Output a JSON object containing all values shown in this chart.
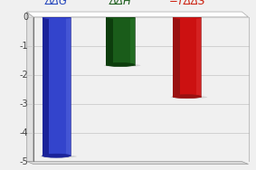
{
  "values": [
    -4.8,
    -1.65,
    -2.75
  ],
  "bar_colors_main": [
    "#3344cc",
    "#1a5c1a",
    "#cc1111"
  ],
  "bar_colors_dark": [
    "#1a2299",
    "#0d3d0d",
    "#991111"
  ],
  "bar_colors_light": [
    "#5566dd",
    "#2a7c2a",
    "#dd3333"
  ],
  "bar_colors_top": [
    "#4455ee",
    "#226622",
    "#ee2222"
  ],
  "ylim": [
    -5,
    0
  ],
  "yticks": [
    0,
    -1,
    -2,
    -3,
    -4,
    -5
  ],
  "background_color": "#f0f0f0",
  "label_colors": [
    "#2244bb",
    "#1a5c1a",
    "#cc2211"
  ],
  "label_texts": [
    "ΔΔG",
    "ΔΔH",
    "−TΔΔS"
  ],
  "grid_color": "#cccccc",
  "wall_color": "#e8e8e8",
  "floor_color": "#d8d8d8",
  "shadow_color": "#c0c0c8",
  "tick_label_color": "#444444",
  "bar_positions": [
    0.22,
    0.47,
    0.73
  ],
  "bar_width": 0.11
}
